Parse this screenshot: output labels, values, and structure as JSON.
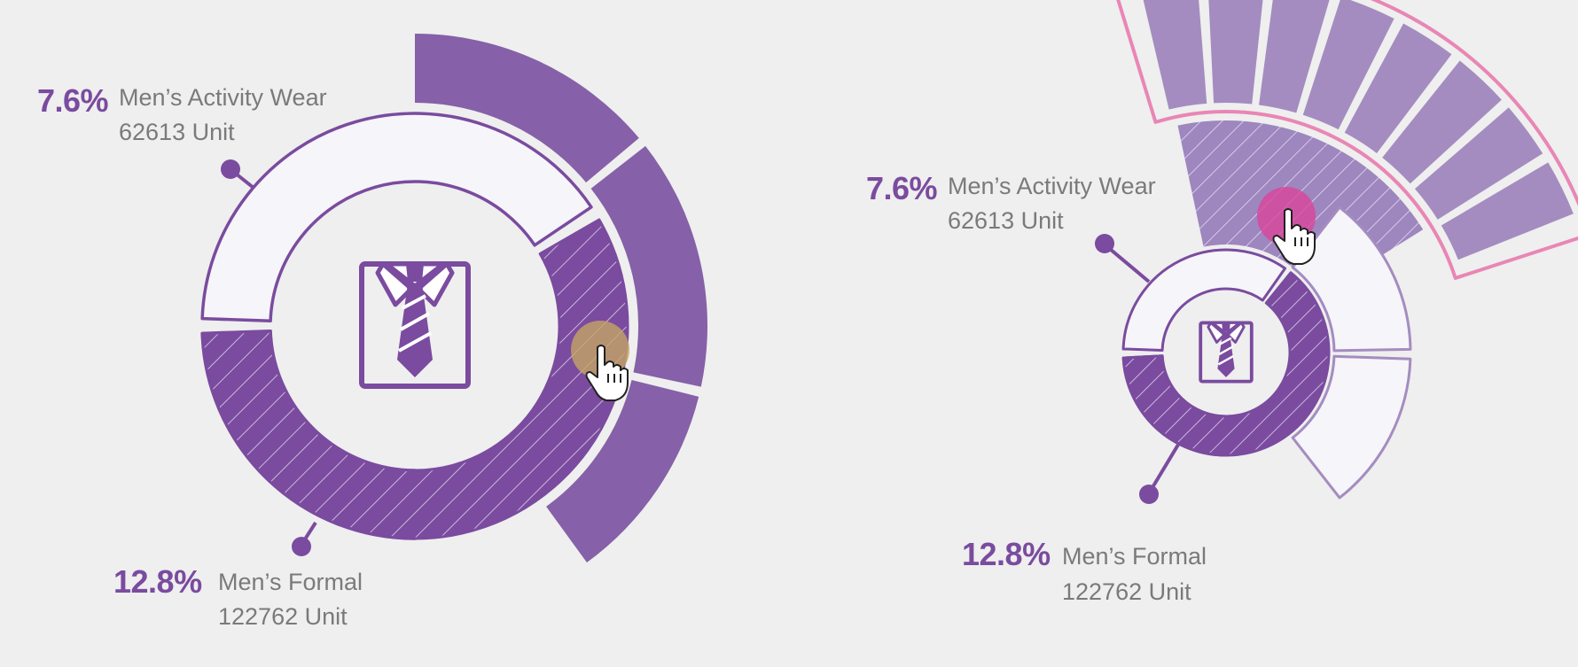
{
  "colors": {
    "background": "#eeefee",
    "primary": "#7a4b9f",
    "primary_fill": "#8660a8",
    "segment_light": "#f6f5fa",
    "drill_fill": "#a48cc0",
    "accent_outline": "#e986b5",
    "hover_cursor_left": "#c4a464",
    "hover_cursor_right": "#d8459b",
    "label_gray": "#7a7a7a"
  },
  "icon": "dress-shirt-tie-icon",
  "chart_data": [
    {
      "type": "donut",
      "state": "hover",
      "center_icon": "dress-shirt-tie-icon",
      "hovered_segment": "hatched",
      "segments": [
        {
          "label": "Men’s Activity Wear",
          "percent": 7.6,
          "units": "62613 Unit",
          "start_deg": -90,
          "end_deg": -2
        },
        {
          "label": "Men’s Formal",
          "percent": 12.8,
          "units": "122762 Unit",
          "start_deg": 2,
          "end_deg": 146
        },
        {
          "label": "hatched",
          "start_deg": 150,
          "end_deg": 358
        }
      ],
      "outer_ring": [
        {
          "start_deg": 0,
          "end_deg": 50
        },
        {
          "start_deg": 52,
          "end_deg": 102
        },
        {
          "start_deg": 104,
          "end_deg": 144
        }
      ],
      "labels": [
        {
          "pct": "7.6%",
          "name": "Men’s Activity Wear",
          "units": "62613 Unit"
        },
        {
          "pct": "12.8%",
          "name": "Men’s Formal",
          "units": "122762 Unit"
        }
      ]
    },
    {
      "type": "donut",
      "state": "drilldown",
      "center_icon": "dress-shirt-tie-icon",
      "hovered_segment": "drill-fan",
      "segments": [
        {
          "label": "Men’s Activity Wear",
          "start_deg": -90,
          "end_deg": -3
        },
        {
          "label": "Men’s Formal",
          "start_deg": 2,
          "end_deg": 125
        },
        {
          "label": "hatched",
          "start_deg": 129,
          "end_deg": 357
        }
      ],
      "outer_ring": [
        {
          "start_deg": 38,
          "end_deg": 89
        },
        {
          "start_deg": 92,
          "end_deg": 142
        }
      ],
      "drill_fan_count": 8,
      "labels": [
        {
          "pct": "7.6%",
          "name": "Men’s Activity Wear",
          "units": "62613 Unit"
        },
        {
          "pct": "12.8%",
          "name": "Men’s Formal",
          "units": "122762 Unit"
        }
      ]
    }
  ]
}
